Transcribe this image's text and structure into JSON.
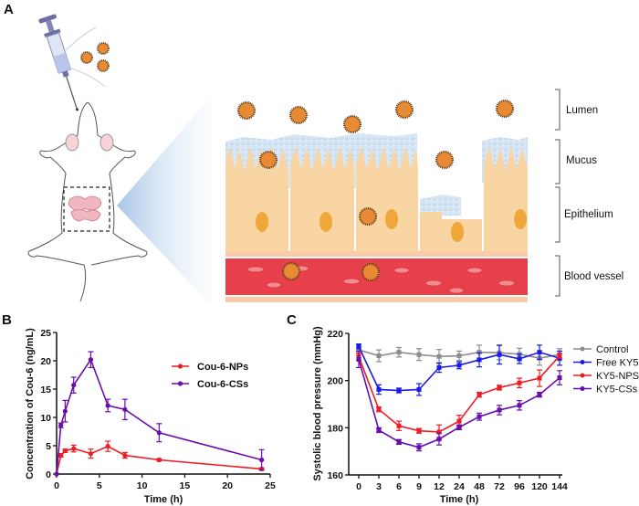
{
  "panels": {
    "A": {
      "label": "A"
    },
    "B": {
      "label": "B"
    },
    "C": {
      "label": "C"
    }
  },
  "illustration": {
    "layers": [
      "Lumen",
      "Mucus",
      "Epithelium",
      "Blood vessel"
    ],
    "colors": {
      "epithelium": "#f9d5a4",
      "nucleus": "#f0a73a",
      "mucus": "#cfe0f1",
      "blood": "#e8404a",
      "nanoparticle": "#e07b2a",
      "intestine": "#f2b6c0"
    }
  },
  "chart_data": [
    {
      "type": "line",
      "panel": "B",
      "title": "",
      "xlabel": "Time (h)",
      "ylabel": "Concentration of Cou-6 (ng/mL)",
      "xlim": [
        0,
        25
      ],
      "ylim": [
        0,
        25
      ],
      "xticks": [
        0,
        5,
        10,
        15,
        20,
        25
      ],
      "yticks": [
        0,
        5,
        10,
        15,
        20,
        25
      ],
      "legend_position": "top-right",
      "grid": false,
      "series": [
        {
          "name": "Cou-6-NPs",
          "color": "#ee1c25",
          "x": [
            0,
            0.5,
            1,
            2,
            4,
            6,
            8,
            12,
            24
          ],
          "values": [
            0,
            3.3,
            4.1,
            4.5,
            3.6,
            4.9,
            3.3,
            2.5,
            0.9
          ],
          "errors": [
            0,
            0.3,
            0.3,
            0.6,
            0.8,
            0.9,
            0.5,
            0.2,
            0.2
          ]
        },
        {
          "name": "Cou-6-CSs",
          "color": "#6a0dad",
          "x": [
            0,
            0.5,
            1,
            2,
            4,
            6,
            8,
            12,
            24
          ],
          "values": [
            0,
            8.6,
            11.1,
            15.7,
            20.2,
            12.1,
            11.4,
            7.3,
            2.5
          ],
          "errors": [
            0,
            0.4,
            1.9,
            1.4,
            1.4,
            1.1,
            1.8,
            1.6,
            1.8
          ]
        }
      ]
    },
    {
      "type": "line",
      "panel": "C",
      "title": "",
      "xlabel": "Time (h)",
      "ylabel": "Systolic blood pressure (mmHg)",
      "categories": [
        "0",
        "3",
        "6",
        "9",
        "12",
        "24",
        "48",
        "72",
        "96",
        "120",
        "144"
      ],
      "ylim": [
        160,
        220
      ],
      "yticks": [
        160,
        180,
        200,
        220
      ],
      "legend_position": "right",
      "grid": false,
      "series": [
        {
          "name": "Control",
          "color": "#8c8c8c",
          "values": [
            213,
            210.5,
            212,
            211,
            210.2,
            210.5,
            212,
            211.8,
            211.2,
            209.5,
            211
          ],
          "errors": [
            1.5,
            2.5,
            2,
            2.5,
            3,
            2,
            3,
            3,
            2.5,
            3,
            2.5
          ]
        },
        {
          "name": "Free KY5",
          "color": "#1a1ae6",
          "values": [
            214.5,
            196.2,
            195.8,
            196.2,
            205.5,
            206.5,
            208.8,
            211,
            209.2,
            212,
            209.5
          ],
          "errors": [
            1,
            2,
            1,
            2.5,
            2,
            1.5,
            3,
            4,
            2,
            3,
            3
          ]
        },
        {
          "name": "KY5-NPS",
          "color": "#ee1c25",
          "values": [
            210.2,
            187.8,
            180.8,
            178.7,
            178.2,
            182.8,
            194,
            197,
            199,
            201,
            210.5
          ],
          "errors": [
            1.5,
            1,
            2,
            1,
            3,
            2.5,
            1,
            1,
            2,
            3.5,
            1
          ]
        },
        {
          "name": "KY5-CSs",
          "color": "#6a0dad",
          "values": [
            209,
            179,
            174,
            171.7,
            175.2,
            180.2,
            184.7,
            187.5,
            189.5,
            194,
            201.2
          ],
          "errors": [
            3.5,
            1,
            1,
            1.5,
            2.5,
            1,
            1.5,
            2,
            2,
            1,
            3
          ]
        }
      ]
    }
  ]
}
